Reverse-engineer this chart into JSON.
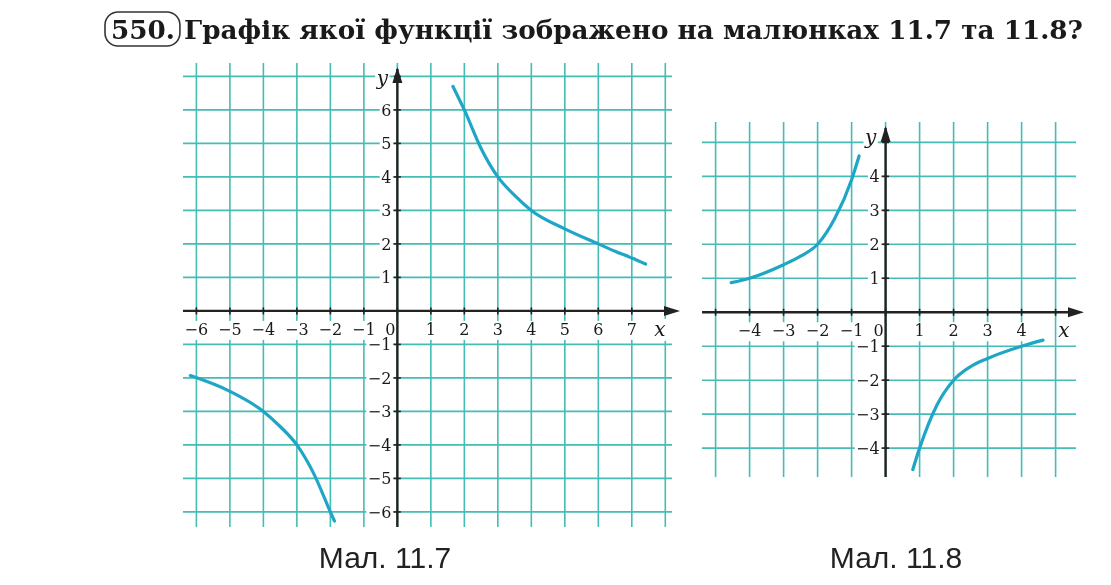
{
  "chart_data": [
    {
      "type": "line",
      "title": "550. Графік якої функції зображено на малюнках 11.7 та 11.8?",
      "xlabel": "x",
      "ylabel": "y",
      "annotations": [
        "Мал. 11.7"
      ],
      "xlim": [
        -6.4,
        8.2
      ],
      "ylim": [
        -6.45,
        7.4
      ],
      "xticks": [
        -6,
        -5,
        -4,
        -3,
        -2,
        -1,
        {
          "value": 0,
          "label": "0"
        },
        1,
        2,
        3,
        4,
        5,
        6,
        7,
        {
          "value": 8,
          "label": null
        }
      ],
      "yticks": [
        -6,
        -5,
        -4,
        -3,
        -2,
        -1,
        1,
        2,
        3,
        4,
        5,
        6,
        {
          "value": 7,
          "label": null
        }
      ],
      "grid": true,
      "series": [
        {
          "color": "#1fa6c6",
          "x": [
            1.66,
            2,
            2.5,
            3,
            3.5,
            4,
            5,
            6,
            6.5,
            7,
            7.41
          ],
          "values": [
            6.7,
            6,
            4.85,
            4,
            3.45,
            3,
            2.45,
            2,
            1.78,
            1.58,
            1.4
          ]
        },
        {
          "color": "#1fa6c6",
          "x": [
            -6.18,
            -5,
            -4,
            -3.5,
            -3,
            -2.5,
            -2,
            -1.88
          ],
          "values": [
            -1.93,
            -2.4,
            -3,
            -3.45,
            -4,
            -4.85,
            -6,
            -6.27
          ]
        }
      ]
    },
    {
      "type": "line",
      "xlabel": "x",
      "ylabel": "y",
      "annotations": [
        "Мал. 11.8"
      ],
      "xlim": [
        -5.4,
        5.6
      ],
      "ylim": [
        -4.85,
        5.6
      ],
      "xticks": [
        {
          "value": -5,
          "label": null
        },
        -4,
        -3,
        -2,
        -1,
        {
          "value": 0,
          "label": "0"
        },
        1,
        2,
        3,
        4,
        {
          "value": 5,
          "label": null
        }
      ],
      "yticks": [
        -4,
        -3,
        -2,
        -1,
        1,
        2,
        3,
        4,
        {
          "value": 5,
          "label": null
        }
      ],
      "grid": true,
      "series": [
        {
          "color": "#1fa6c6",
          "x": [
            -4.54,
            -4,
            -3,
            -2.5,
            -2,
            -1.5,
            -1,
            -0.78
          ],
          "values": [
            0.87,
            1.0,
            1.4,
            1.65,
            2.0,
            2.75,
            3.9,
            4.6
          ]
        },
        {
          "color": "#1fa6c6",
          "x": [
            0.8,
            1,
            1.5,
            2,
            2.5,
            3,
            4,
            4.63
          ],
          "values": [
            -4.63,
            -4.0,
            -2.75,
            -2.0,
            -1.6,
            -1.36,
            -1.0,
            -0.82
          ]
        }
      ]
    }
  ]
}
